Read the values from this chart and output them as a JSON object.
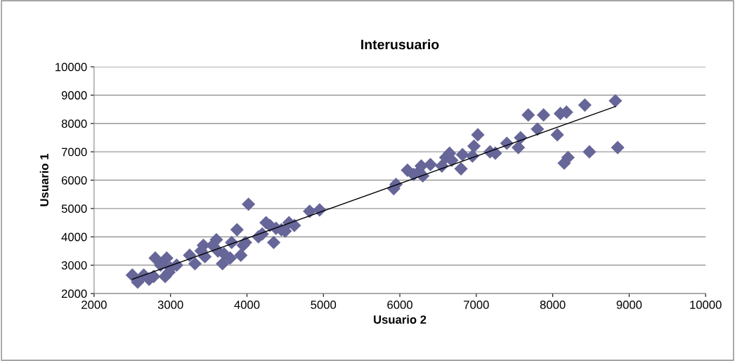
{
  "chart_data": {
    "type": "scatter",
    "title": "Interusuario",
    "xlabel": "Usuario 2",
    "ylabel": "Usuario 1",
    "xlim": [
      2000,
      10000
    ],
    "xticks": [
      2000,
      3000,
      4000,
      5000,
      6000,
      7000,
      8000,
      9000,
      10000
    ],
    "ylim": [
      2000,
      10000
    ],
    "yticks": [
      2000,
      3000,
      4000,
      5000,
      6000,
      7000,
      8000,
      9000,
      10000
    ],
    "grid": "y",
    "legend": false,
    "marker": "diamond",
    "series": [
      {
        "color": "#666699",
        "x": [
          2500,
          2570,
          2650,
          2720,
          2780,
          2800,
          2870,
          2900,
          2930,
          2950,
          2980,
          3000,
          3080,
          3250,
          3320,
          3400,
          3430,
          3450,
          3550,
          3600,
          3620,
          3680,
          3700,
          3780,
          3800,
          3870,
          3920,
          3950,
          3980,
          4020,
          4150,
          4200,
          4250,
          4300,
          4350,
          4380,
          4450,
          4500,
          4550,
          4620,
          4820,
          4950,
          5920,
          5950,
          6100,
          6180,
          6250,
          6280,
          6300,
          6400,
          6550,
          6600,
          6650,
          6680,
          6800,
          6820,
          6950,
          6970,
          7020,
          7180,
          7250,
          7400,
          7550,
          7580,
          7680,
          7800,
          7880,
          8060,
          8100,
          8150,
          8180,
          8200,
          8420,
          8480,
          8820,
          8850
        ],
        "values": [
          2650,
          2400,
          2650,
          2500,
          2600,
          3250,
          3000,
          3100,
          2600,
          3250,
          2750,
          2900,
          3000,
          3350,
          3050,
          3500,
          3700,
          3300,
          3700,
          3900,
          3500,
          3050,
          3400,
          3250,
          3800,
          4250,
          3350,
          3700,
          3800,
          5150,
          4000,
          4100,
          4500,
          4400,
          3800,
          4300,
          4250,
          4200,
          4500,
          4400,
          4900,
          4950,
          5700,
          5850,
          6350,
          6200,
          6300,
          6500,
          6150,
          6550,
          6500,
          6800,
          6950,
          6700,
          6400,
          6900,
          6850,
          7200,
          7600,
          7000,
          6950,
          7300,
          7150,
          7500,
          8300,
          7800,
          8300,
          7600,
          8350,
          6600,
          8400,
          6800,
          8650,
          7000,
          8800,
          7150
        ]
      },
      {
        "type": "line",
        "color": "#000000",
        "x": [
          2500,
          8820
        ],
        "values": [
          2500,
          8600
        ],
        "marker": "none",
        "line_style": "solid"
      }
    ]
  }
}
